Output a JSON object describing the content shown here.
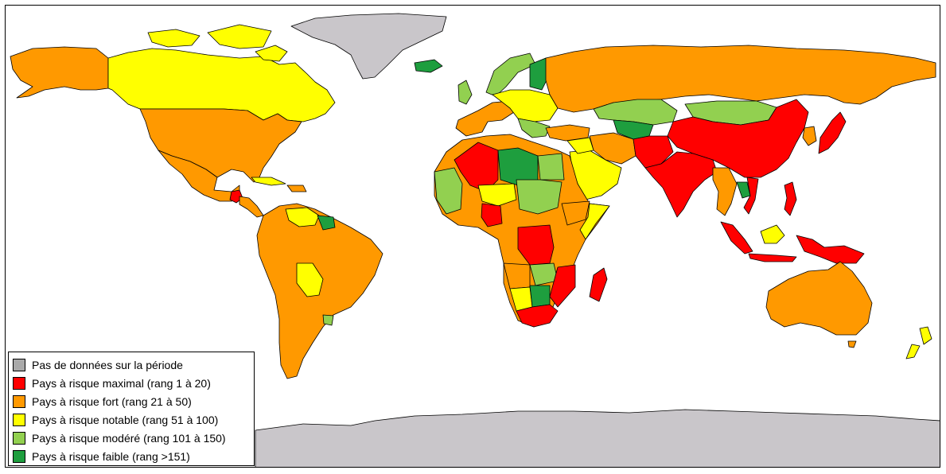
{
  "legend": {
    "items": [
      {
        "label": "Pas de données sur la période",
        "color": "#a9a9a9"
      },
      {
        "label": "Pays à risque maximal (rang 1 à 20)",
        "color": "#ff0000"
      },
      {
        "label": "Pays à risque fort (rang 21 à 50)",
        "color": "#ff9900"
      },
      {
        "label": "Pays à risque notable (rang 51 à 100)",
        "color": "#ffff00"
      },
      {
        "label": "Pays à risque modéré (rang 101 à 150)",
        "color": "#92d050"
      },
      {
        "label": "Pays à risque faible (rang >151)",
        "color": "#1e9e3e"
      }
    ]
  },
  "colors": {
    "no_data_land": "#c9c6ca",
    "border": "#000000",
    "background": "#ffffff"
  }
}
